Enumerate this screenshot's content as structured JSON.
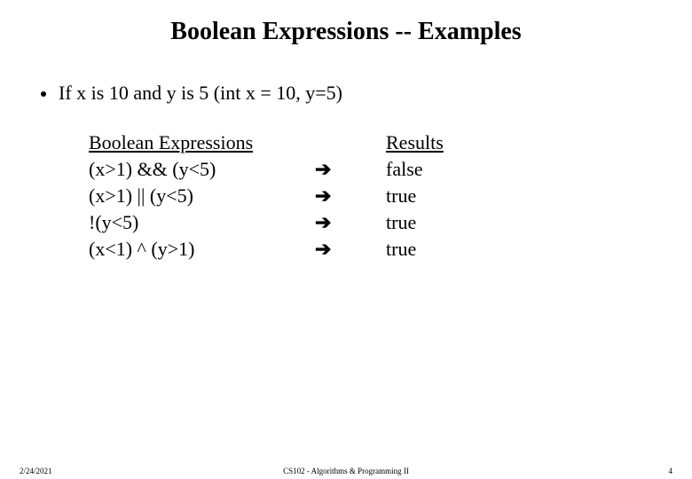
{
  "title": "Boolean Expressions -- Examples",
  "title_fontsize": 28,
  "bullet_text": "If  x is 10 and y is 5  (int x = 10, y=5)",
  "bullet_fontsize": 22,
  "table": {
    "header_expr": "Boolean Expressions",
    "header_result": "Results",
    "row_fontsize": 22,
    "arrow_glyph": "➔",
    "rows": [
      {
        "expr": "(x>1) && (y<5)",
        "result": "false"
      },
      {
        "expr": "(x>1) || (y<5)",
        "result": "true"
      },
      {
        "expr": "!(y<5)",
        "result": "true"
      },
      {
        "expr": "(x<1) ^ (y>1)",
        "result": "true"
      }
    ]
  },
  "footer": {
    "date": "2/24/2021",
    "center": "CS102 - Algorithms & Programming II",
    "page": "4"
  }
}
